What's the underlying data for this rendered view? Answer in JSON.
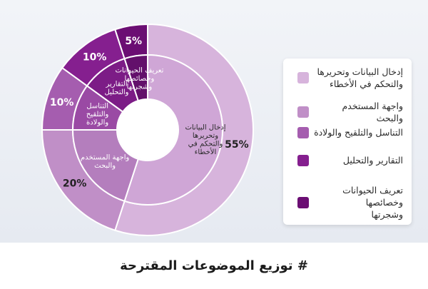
{
  "chart_data": {
    "type": "pie",
    "title": "# توزيع الموضوعات المقترحة",
    "categories": [
      "إدخال البيانات وتحريرها والتحكم في الأخطاء",
      "واجهة المستخدم والبحث",
      "التناسل والتلقيح والولادة",
      "التقارير والتحليل",
      "تعريف الحيوانات وخصائصها وشجرتها"
    ],
    "values": [
      55,
      20,
      10,
      10,
      5
    ],
    "value_labels": [
      "55%",
      "20%",
      "10%",
      "10%",
      "5%"
    ],
    "ring_labels": [
      [
        "إدخال البيانات",
        "وتحريرها",
        "والتحكم في",
        "الأخطاء"
      ],
      [
        "واجهة المستخدم",
        "والبحث"
      ],
      [
        "التناسل",
        "والتلقيح",
        "والولادة"
      ],
      [
        "التقارير",
        "والتحليل"
      ],
      [
        "تعريف الحيوانات",
        "وخصائصها",
        "وشجرتها"
      ]
    ],
    "legend_labels": [
      [
        "إدخال البيانات وتحريرها",
        "والتحكم في الأخطاء"
      ],
      [
        "واجهة المستخدم والبحث"
      ],
      [
        "التناسل والتلقيح والولادة"
      ],
      [
        "التقارير والتحليل"
      ],
      [
        "تعريف الحيوانات وخصائصها",
        "وشجرتها"
      ]
    ],
    "colors": [
      "#d7b4dc",
      "#c08fc7",
      "#a55daf",
      "#851f8f",
      "#6b0e73"
    ],
    "inner_colors": [
      "#cfa6d6",
      "#b47ebd",
      "#9a4aa4",
      "#7c1c86",
      "#63106b"
    ],
    "legend_placement": "right"
  }
}
